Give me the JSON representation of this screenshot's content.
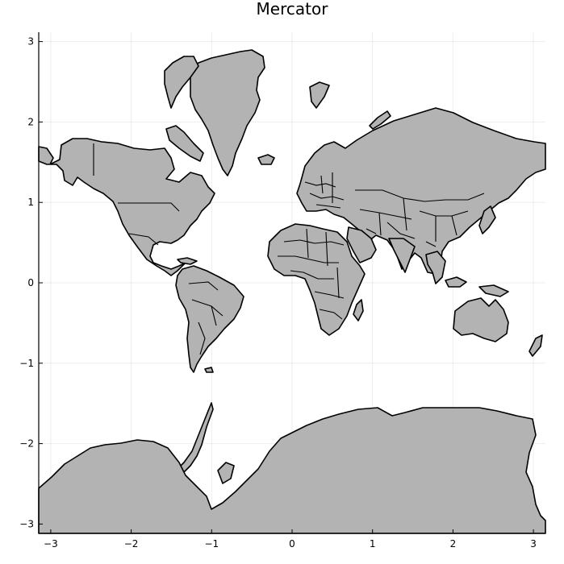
{
  "chart_data": {
    "type": "map",
    "title": "Mercator",
    "projection": "Mercator",
    "xlim": [
      -3.14,
      3.14
    ],
    "ylim": [
      -3.14,
      3.14
    ],
    "x_ticks": [
      {
        "value": -3,
        "label": "−3"
      },
      {
        "value": -2,
        "label": "−2"
      },
      {
        "value": -1,
        "label": "−1"
      },
      {
        "value": 0,
        "label": "0"
      },
      {
        "value": 1,
        "label": "1"
      },
      {
        "value": 2,
        "label": "2"
      },
      {
        "value": 3,
        "label": "3"
      }
    ],
    "y_ticks": [
      {
        "value": 3,
        "label": "3"
      },
      {
        "value": 2,
        "label": "2"
      },
      {
        "value": 1,
        "label": "1"
      },
      {
        "value": 0,
        "label": "0"
      },
      {
        "value": -1,
        "label": "−1"
      },
      {
        "value": -2,
        "label": "−2"
      },
      {
        "value": -3,
        "label": "−3"
      }
    ],
    "grid": true,
    "land_color": "#b3b3b3",
    "border_color": "#000000"
  }
}
